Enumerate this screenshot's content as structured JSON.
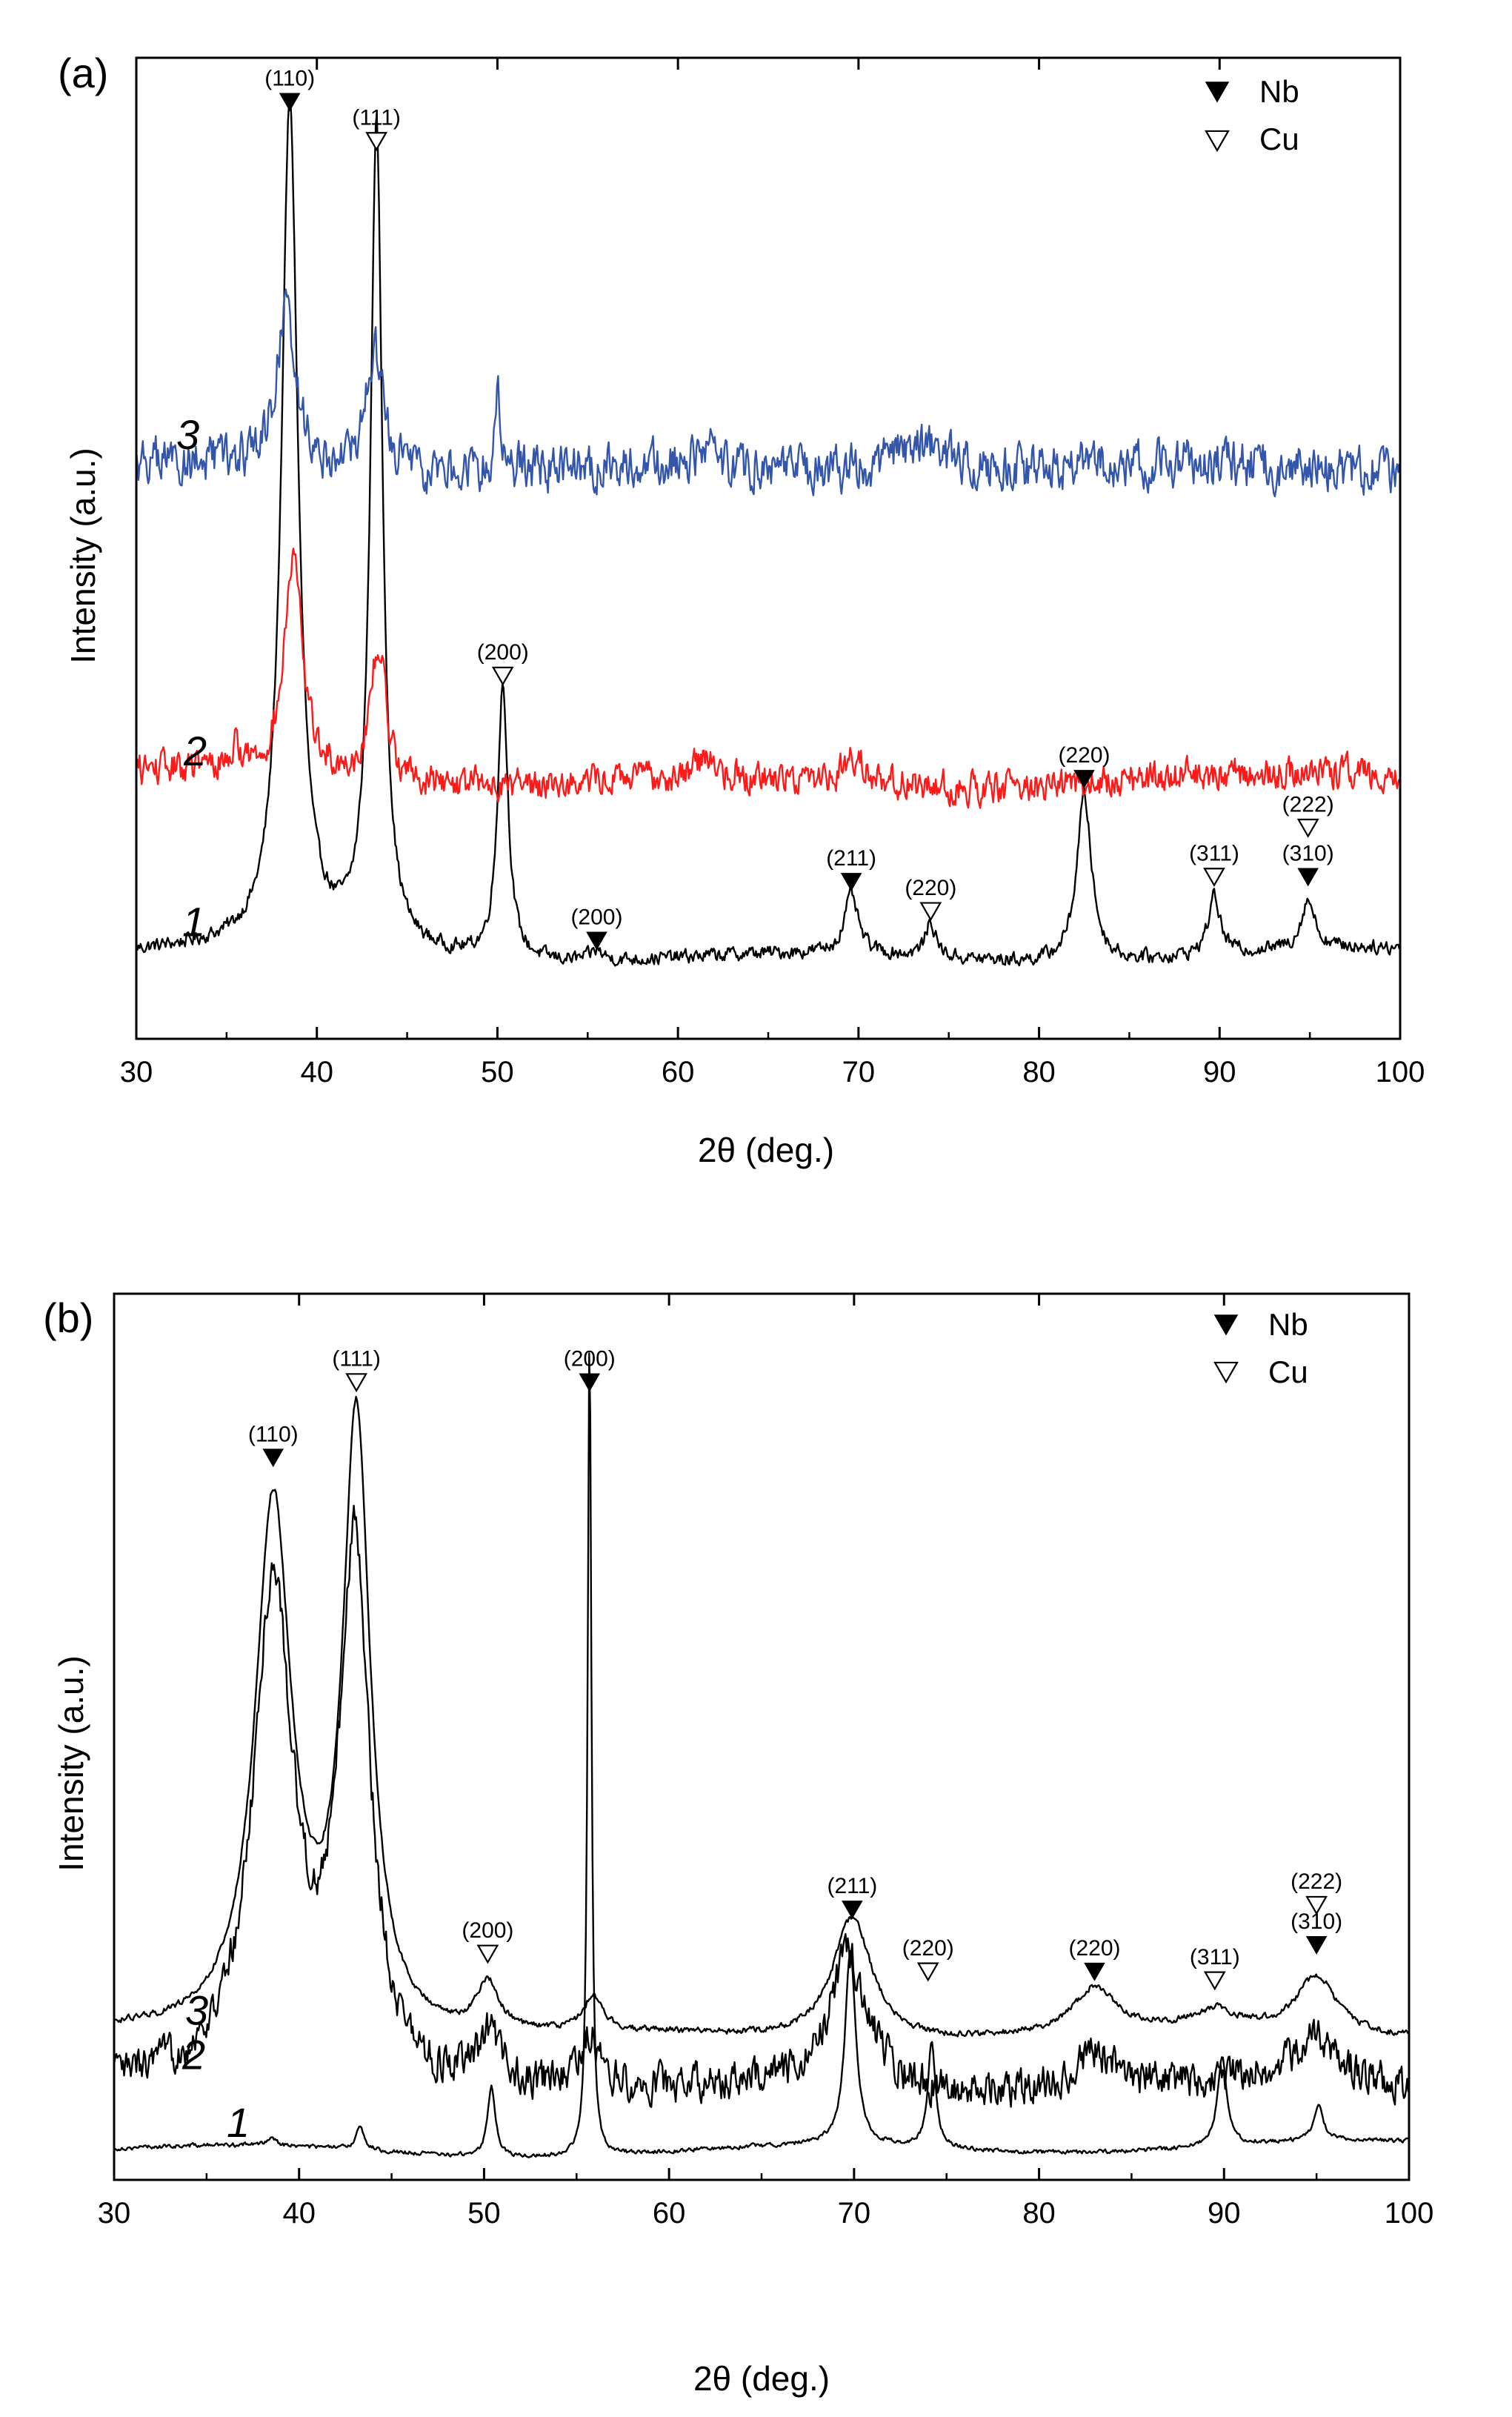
{
  "chart_data": [
    {
      "type": "line",
      "panel_label": "(a)",
      "xlabel": "2θ (deg.)",
      "ylabel": "Intensity (a.u.)",
      "xlim": [
        30,
        100
      ],
      "xticks": [
        30,
        40,
        50,
        60,
        70,
        80,
        90,
        100
      ],
      "ylim": [
        0,
        1
      ],
      "yticks": "none",
      "legend": {
        "position": "top-right",
        "entries": [
          {
            "symbol": "filled-down-triangle",
            "label": "Nb"
          },
          {
            "symbol": "open-down-triangle",
            "label": "Cu"
          }
        ]
      },
      "series": [
        {
          "name": "1",
          "color": "#000000",
          "baseline": 0.085,
          "noise": 0.006,
          "peaks": [
            {
              "x": 38.5,
              "height": 0.86,
              "width": 0.55
            },
            {
              "x": 43.3,
              "height": 0.84,
              "width": 0.4
            },
            {
              "x": 50.3,
              "height": 0.28,
              "width": 0.35
            },
            {
              "x": 55.5,
              "height": 0.01,
              "width": 0.4
            },
            {
              "x": 69.6,
              "height": 0.06,
              "width": 0.45
            },
            {
              "x": 74.0,
              "height": 0.035,
              "width": 0.35
            },
            {
              "x": 82.5,
              "height": 0.17,
              "width": 0.5
            },
            {
              "x": 89.7,
              "height": 0.06,
              "width": 0.4
            },
            {
              "x": 94.9,
              "height": 0.05,
              "width": 0.45
            }
          ]
        },
        {
          "name": "2",
          "color": "#ff1a1a",
          "baseline": 0.265,
          "noise": 0.014,
          "peaks": [
            {
              "x": 38.7,
              "height": 0.22,
              "width": 0.6
            },
            {
              "x": 43.4,
              "height": 0.14,
              "width": 0.5
            },
            {
              "x": 35.5,
              "height": 0.02,
              "width": 0.4
            },
            {
              "x": 61.5,
              "height": 0.02,
              "width": 0.6
            },
            {
              "x": 69.8,
              "height": 0.025,
              "width": 0.8
            }
          ]
        },
        {
          "name": "3",
          "color": "#3355aa",
          "baseline": 0.58,
          "noise": 0.02,
          "peaks": [
            {
              "x": 38.3,
              "height": 0.16,
              "width": 0.7
            },
            {
              "x": 43.2,
              "height": 0.12,
              "width": 0.6
            },
            {
              "x": 50.0,
              "height": 0.1,
              "width": 0.15
            },
            {
              "x": 61.5,
              "height": 0.03,
              "width": 0.5
            },
            {
              "x": 73.5,
              "height": 0.03,
              "width": 3.0
            }
          ]
        }
      ],
      "curve_labels": [
        {
          "text": "3",
          "series": "3"
        },
        {
          "text": "2",
          "series": "2"
        },
        {
          "text": "1",
          "series": "1"
        }
      ],
      "annotations": [
        {
          "x": 38.5,
          "phase": "Nb",
          "hkl": "(110)",
          "y": 0.955
        },
        {
          "x": 43.3,
          "phase": "Cu",
          "hkl": "(111)",
          "y": 0.915
        },
        {
          "x": 50.3,
          "phase": "Cu",
          "hkl": "(200)",
          "y": 0.37
        },
        {
          "x": 55.5,
          "phase": "Nb",
          "hkl": "(200)",
          "y": 0.1
        },
        {
          "x": 69.6,
          "phase": "Nb",
          "hkl": "(211)",
          "y": 0.16
        },
        {
          "x": 74.0,
          "phase": "Cu",
          "hkl": "(220)",
          "y": 0.13
        },
        {
          "x": 82.5,
          "phase": "Nb",
          "hkl": "(220)",
          "y": 0.265
        },
        {
          "x": 89.7,
          "phase": "Cu",
          "hkl": "(311)",
          "y": 0.165
        },
        {
          "x": 94.9,
          "phase": "Cu",
          "hkl": "(222)",
          "y": 0.215
        },
        {
          "x": 94.9,
          "phase": "Nb",
          "hkl": "(310)",
          "y": 0.165
        }
      ]
    },
    {
      "type": "line",
      "panel_label": "(b)",
      "xlabel": "2θ (deg.)",
      "ylabel": "Intensity (a.u.)",
      "xlim": [
        30,
        100
      ],
      "xticks": [
        30,
        40,
        50,
        60,
        70,
        80,
        90,
        100
      ],
      "ylim": [
        0,
        1
      ],
      "yticks": "none",
      "legend": {
        "position": "top-right",
        "entries": [
          {
            "symbol": "filled-down-triangle",
            "label": "Nb"
          },
          {
            "symbol": "open-down-triangle",
            "label": "Cu"
          }
        ]
      },
      "series": [
        {
          "name": "1",
          "color": "#000000",
          "baseline": 0.035,
          "noise": 0.002,
          "peaks": [
            {
              "x": 38.5,
              "height": 0.01,
              "width": 0.3
            },
            {
              "x": 43.3,
              "height": 0.028,
              "width": 0.25
            },
            {
              "x": 50.4,
              "height": 0.08,
              "width": 0.25
            },
            {
              "x": 55.7,
              "height": 0.93,
              "width": 0.12
            },
            {
              "x": 69.8,
              "height": 0.22,
              "width": 0.35
            },
            {
              "x": 74.2,
              "height": 0.12,
              "width": 0.25
            },
            {
              "x": 89.9,
              "height": 0.1,
              "width": 0.3
            },
            {
              "x": 95.1,
              "height": 0.04,
              "width": 0.3
            }
          ]
        },
        {
          "name": "2",
          "color": "#000000",
          "baseline": 0.1,
          "noise": 0.018,
          "peaks": [
            {
              "x": 38.6,
              "height": 0.56,
              "width": 1.3
            },
            {
              "x": 43.0,
              "height": 0.6,
              "width": 1.0
            },
            {
              "x": 50.3,
              "height": 0.06,
              "width": 0.8
            },
            {
              "x": 55.7,
              "height": 0.06,
              "width": 0.6
            },
            {
              "x": 69.7,
              "height": 0.15,
              "width": 1.3
            },
            {
              "x": 83.0,
              "height": 0.04,
              "width": 1.5
            },
            {
              "x": 94.8,
              "height": 0.05,
              "width": 1.5
            }
          ]
        },
        {
          "name": "3",
          "color": "#000000",
          "baseline": 0.16,
          "noise": 0.003,
          "peaks": [
            {
              "x": 38.6,
              "height": 0.6,
              "width": 1.2
            },
            {
              "x": 43.1,
              "height": 0.69,
              "width": 0.9
            },
            {
              "x": 50.2,
              "height": 0.055,
              "width": 0.7
            },
            {
              "x": 55.9,
              "height": 0.04,
              "width": 0.6
            },
            {
              "x": 69.9,
              "height": 0.14,
              "width": 1.3
            },
            {
              "x": 83.0,
              "height": 0.05,
              "width": 1.4
            },
            {
              "x": 89.5,
              "height": 0.02,
              "width": 1.2
            },
            {
              "x": 95.0,
              "height": 0.065,
              "width": 1.3
            }
          ]
        }
      ],
      "curve_labels": [
        {
          "text": "3",
          "series": "3"
        },
        {
          "text": "2",
          "series": "2"
        },
        {
          "text": "1",
          "series": "1"
        }
      ],
      "annotations": [
        {
          "x": 38.6,
          "phase": "Nb",
          "hkl": "(110)",
          "y": 0.815
        },
        {
          "x": 43.1,
          "phase": "Cu",
          "hkl": "(111)",
          "y": 0.9
        },
        {
          "x": 55.7,
          "phase": "Nb",
          "hkl": "(200)",
          "y": 0.9
        },
        {
          "x": 50.2,
          "phase": "Cu",
          "hkl": "(200)",
          "y": 0.255
        },
        {
          "x": 69.9,
          "phase": "Nb",
          "hkl": "(211)",
          "y": 0.305
        },
        {
          "x": 74.0,
          "phase": "Cu",
          "hkl": "(220)",
          "y": 0.235
        },
        {
          "x": 83.0,
          "phase": "Nb",
          "hkl": "(220)",
          "y": 0.235
        },
        {
          "x": 89.5,
          "phase": "Cu",
          "hkl": "(311)",
          "y": 0.225
        },
        {
          "x": 95.0,
          "phase": "Cu",
          "hkl": "(222)",
          "y": 0.31
        },
        {
          "x": 95.0,
          "phase": "Nb",
          "hkl": "(310)",
          "y": 0.265
        }
      ]
    }
  ]
}
